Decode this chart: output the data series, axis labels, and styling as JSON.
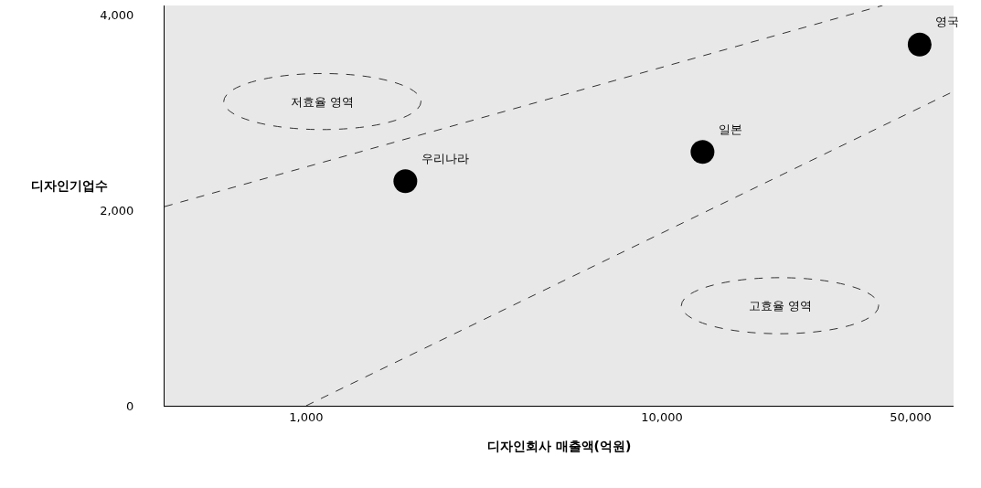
{
  "chart_data": {
    "type": "scatter",
    "xlabel": "디자인회사 매출액(억원)",
    "ylabel": "디자인기업수",
    "log": "x",
    "xlim": [
      400,
      66000
    ],
    "ylim": [
      0,
      4100
    ],
    "xticks": [
      {
        "value": 1000,
        "label": "1,000"
      },
      {
        "value": 10000,
        "label": "10,000"
      },
      {
        "value": 50000,
        "label": "50,000"
      }
    ],
    "yticks": [
      {
        "value": 0,
        "label": "0"
      },
      {
        "value": 2000,
        "label": "2,000"
      },
      {
        "value": 4000,
        "label": "4,000"
      }
    ],
    "grid": false,
    "legend": false,
    "series": [
      {
        "name": "우리나라",
        "color": "#000000",
        "marker": "circle",
        "x": [
          1900
        ],
        "values": [
          2300
        ]
      },
      {
        "name": "일본",
        "color": "#000000",
        "marker": "circle",
        "x": [
          13000
        ],
        "values": [
          2600
        ]
      },
      {
        "name": "영국",
        "color": "#000000",
        "marker": "circle",
        "x": [
          53000
        ],
        "values": [
          3700
        ]
      },
      {
        "type": "line",
        "line_style": "dashed",
        "color": "#333333",
        "x": [
          400,
          41700
        ],
        "values": [
          2040,
          4100
        ]
      },
      {
        "type": "line",
        "line_style": "dashed",
        "color": "#333333",
        "x": [
          1000,
          66000
        ],
        "values": [
          0,
          3220
        ]
      }
    ],
    "annotations": [
      "저효율 영역",
      "고효율 영역"
    ]
  }
}
